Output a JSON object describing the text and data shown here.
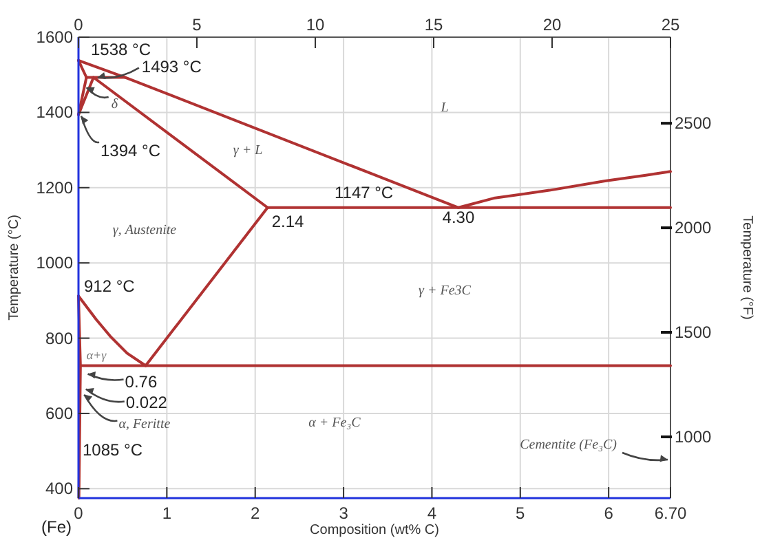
{
  "chart_data": {
    "type": "line",
    "xlabel": "Composition (wt% C)",
    "ylabel": "Temperature (°C)",
    "y2label": "Temperature (°F)",
    "xlim": [
      0,
      6.7
    ],
    "xticks": [
      0,
      1,
      2,
      3,
      4,
      5,
      6,
      {
        "value": 6.7,
        "label": "6.70"
      }
    ],
    "x2lim": [
      0,
      25
    ],
    "x2ticks": [
      0,
      5,
      10,
      15,
      20,
      25
    ],
    "ylim": [
      375,
      1600
    ],
    "yticks": [
      400,
      600,
      800,
      1000,
      1200,
      1400,
      1600
    ],
    "y2lim": [
      707,
      2912
    ],
    "y2ticks": [
      1000,
      1500,
      2000,
      2500
    ],
    "grid": true,
    "marker": "none",
    "line_style": "solid",
    "series": [
      {
        "color": "#b03232",
        "x": [
          0,
          0.53,
          4.3,
          4.7,
          5.33,
          5.96,
          6.42,
          6.7
        ],
        "values": [
          1538,
          1493,
          1147,
          1172,
          1193,
          1218,
          1233,
          1243
        ]
      },
      {
        "color": "#b03232",
        "x": [
          0,
          0.09
        ],
        "values": [
          1538,
          1493
        ]
      },
      {
        "color": "#b03232",
        "x": [
          0.09,
          0.53
        ],
        "values": [
          1493,
          1493
        ]
      },
      {
        "color": "#b03232",
        "x": [
          0,
          0.09
        ],
        "values": [
          1394,
          1493
        ]
      },
      {
        "color": "#b03232",
        "x": [
          0,
          0.17
        ],
        "values": [
          1394,
          1493
        ]
      },
      {
        "color": "#b03232",
        "x": [
          0.17,
          2.14
        ],
        "values": [
          1493,
          1147
        ]
      },
      {
        "color": "#b03232",
        "x": [
          2.14,
          6.7
        ],
        "values": [
          1147,
          1147
        ]
      },
      {
        "color": "#b03232",
        "x": [
          0.76,
          2.14
        ],
        "values": [
          727,
          1147
        ]
      },
      {
        "color": "#b03232",
        "x": [
          0,
          0.2,
          0.36,
          0.55,
          0.76
        ],
        "values": [
          912,
          850,
          805,
          760,
          727
        ]
      },
      {
        "color": "#b03232",
        "x": [
          0,
          0.022,
          0.005
        ],
        "values": [
          912,
          727,
          375
        ]
      },
      {
        "color": "#b03232",
        "x": [
          0.022,
          6.7
        ],
        "values": [
          727,
          727
        ]
      }
    ],
    "annotations": [
      {
        "text": "1538 °C",
        "x": 0,
        "y": 1538
      },
      {
        "text": "1493 °C",
        "x": 0.17,
        "y": 1493
      },
      {
        "text": "δ",
        "x": 0.06,
        "y": 1470
      },
      {
        "text": "1394 °C",
        "x": 0,
        "y": 1394
      },
      "γ + L",
      "L",
      {
        "text": "1147 °C",
        "x": 3.23,
        "y": 1147
      },
      {
        "text": "2.14",
        "x": 2.14,
        "y": 1147
      },
      {
        "text": "4.30",
        "x": 4.3,
        "y": 1147
      },
      "γ, Austenite",
      "γ + Fe3C",
      {
        "text": "912 °C",
        "x": 0,
        "y": 912
      },
      "α+γ",
      {
        "text": "0.76",
        "x": 0.76,
        "y": 727
      },
      {
        "text": "0.022",
        "x": 0.022,
        "y": 727
      },
      {
        "text": "α, Feritte",
        "x": 0.05,
        "y": 650
      },
      "1085 °C",
      "α + Fe₃C",
      "Cementite (Fe₃C)",
      "(Fe)"
    ]
  }
}
